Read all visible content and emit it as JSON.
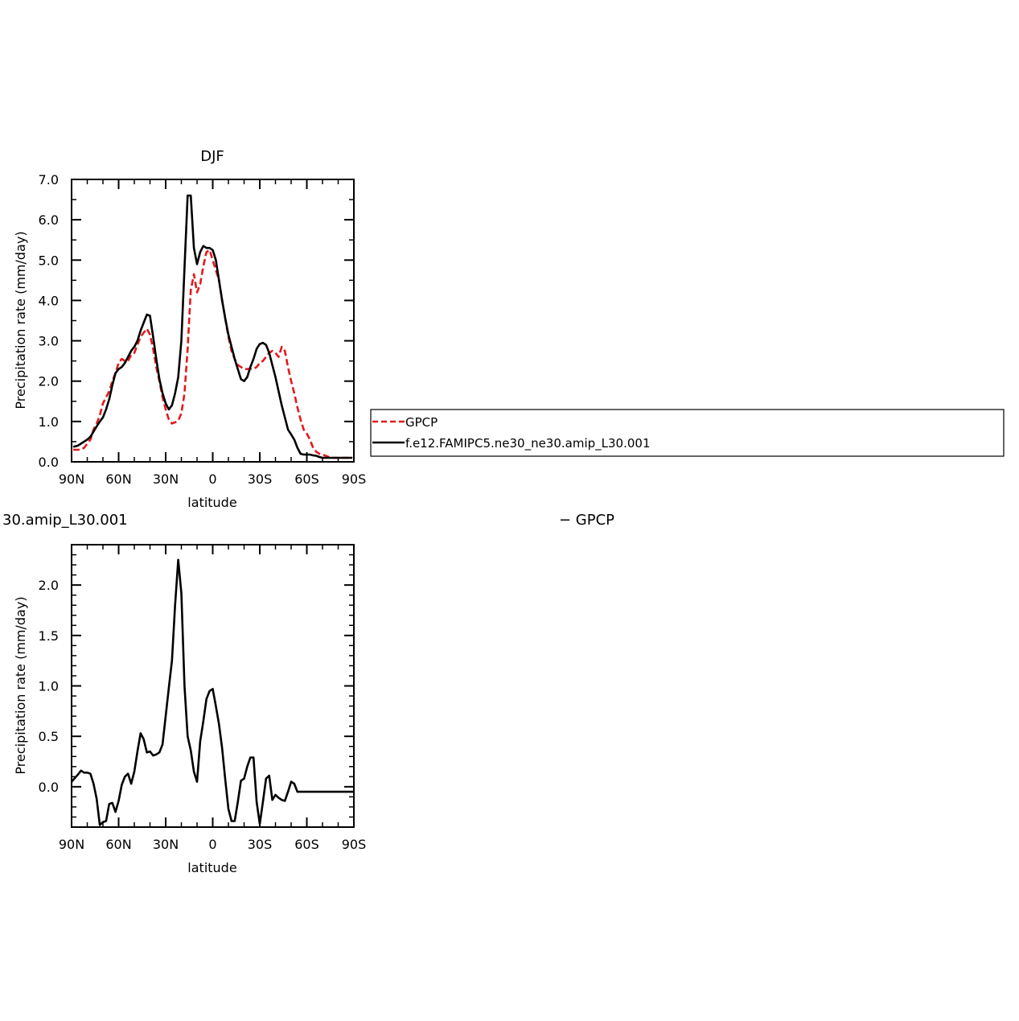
{
  "chart_data": [
    {
      "type": "line",
      "title": "DJF",
      "xlabel": "latitude",
      "ylabel": "Precipitation rate (mm/day)",
      "xlim": [
        90,
        -90
      ],
      "ylim": [
        0,
        7
      ],
      "xticks": [
        90,
        60,
        30,
        0,
        -30,
        -60,
        -90
      ],
      "xtick_labels": [
        "90N",
        "60N",
        "30N",
        "0",
        "30S",
        "60S",
        "90S"
      ],
      "yticks": [
        0,
        1,
        2,
        3,
        4,
        5,
        6,
        7
      ],
      "ytick_labels": [
        "0.0",
        "1.0",
        "2.0",
        "3.0",
        "4.0",
        "5.0",
        "6.0",
        "7.0"
      ],
      "legend_position": "right, outside plot",
      "series": [
        {
          "name": "GPCP",
          "color": "#e31a1c",
          "dash": "dashed",
          "x": [
            89,
            86,
            84,
            82,
            80,
            78,
            76,
            74,
            72,
            70,
            68,
            66,
            64,
            62,
            60,
            58,
            56,
            54,
            52,
            50,
            48,
            46,
            44,
            42,
            40,
            38,
            36,
            34,
            32,
            30,
            28,
            26,
            24,
            22,
            20,
            18,
            16,
            14,
            12,
            10,
            8,
            6,
            4,
            2,
            0,
            -2,
            -4,
            -6,
            -8,
            -10,
            -12,
            -14,
            -16,
            -18,
            -20,
            -22,
            -24,
            -26,
            -28,
            -30,
            -32,
            -34,
            -36,
            -38,
            -40,
            -42,
            -44,
            -46,
            -48,
            -50,
            -52,
            -54,
            -56,
            -58,
            -60,
            -62,
            -64,
            -66,
            -68,
            -70,
            -72,
            -74,
            -76,
            -78,
            -80,
            -82,
            -84,
            -86,
            -89
          ],
          "y": [
            0.3,
            0.3,
            0.3,
            0.35,
            0.45,
            0.55,
            0.8,
            0.95,
            1.15,
            1.45,
            1.6,
            1.75,
            2.0,
            2.2,
            2.45,
            2.55,
            2.5,
            2.5,
            2.65,
            2.7,
            2.9,
            3.1,
            3.2,
            3.3,
            3.15,
            2.8,
            2.35,
            2.0,
            1.6,
            1.3,
            1.05,
            0.95,
            0.98,
            1.02,
            1.2,
            1.7,
            2.8,
            4.25,
            4.65,
            4.2,
            4.4,
            4.85,
            5.2,
            5.25,
            5.0,
            4.75,
            4.5,
            4.0,
            3.55,
            3.1,
            2.75,
            2.55,
            2.4,
            2.35,
            2.3,
            2.3,
            2.3,
            2.3,
            2.35,
            2.45,
            2.5,
            2.6,
            2.7,
            2.75,
            2.7,
            2.6,
            2.85,
            2.75,
            2.35,
            2.0,
            1.7,
            1.35,
            1.05,
            0.8,
            0.7,
            0.55,
            0.35,
            0.25,
            0.2,
            0.18,
            0.15,
            0.12,
            0.1,
            0.1,
            0.1,
            0.1,
            0.1,
            0.1,
            0.1
          ]
        },
        {
          "name": "f.e12.FAMIPC5.ne30_ne30.amip_L30.001",
          "color": "#000000",
          "dash": "solid",
          "x": [
            89,
            86,
            84,
            82,
            80,
            78,
            76,
            74,
            72,
            70,
            68,
            66,
            64,
            62,
            60,
            58,
            56,
            54,
            52,
            50,
            48,
            46,
            44,
            42,
            40,
            38,
            36,
            34,
            32,
            30,
            28,
            26,
            24,
            22,
            20,
            18,
            16,
            14,
            12,
            10,
            8,
            6,
            4,
            2,
            0,
            -2,
            -4,
            -6,
            -8,
            -10,
            -12,
            -14,
            -16,
            -18,
            -20,
            -22,
            -24,
            -26,
            -28,
            -30,
            -32,
            -34,
            -36,
            -38,
            -40,
            -42,
            -44,
            -46,
            -48,
            -50,
            -52,
            -54,
            -56,
            -58,
            -60,
            -62,
            -64,
            -66,
            -68,
            -70,
            -72,
            -74,
            -76,
            -78,
            -80,
            -82,
            -84,
            -86,
            -89
          ],
          "y": [
            0.37,
            0.4,
            0.45,
            0.5,
            0.55,
            0.62,
            0.75,
            0.88,
            1.0,
            1.1,
            1.3,
            1.55,
            1.9,
            2.2,
            2.3,
            2.35,
            2.45,
            2.6,
            2.75,
            2.85,
            3.0,
            3.25,
            3.45,
            3.65,
            3.62,
            3.1,
            2.55,
            2.05,
            1.7,
            1.45,
            1.3,
            1.4,
            1.7,
            2.1,
            3.0,
            4.8,
            6.6,
            6.6,
            5.3,
            4.9,
            5.2,
            5.35,
            5.3,
            5.3,
            5.25,
            5.0,
            4.5,
            4.0,
            3.55,
            3.15,
            2.85,
            2.55,
            2.3,
            2.05,
            2.0,
            2.1,
            2.35,
            2.55,
            2.8,
            2.92,
            2.95,
            2.9,
            2.7,
            2.4,
            2.1,
            1.75,
            1.4,
            1.1,
            0.8,
            0.68,
            0.55,
            0.35,
            0.2,
            0.18,
            0.18,
            0.18,
            0.16,
            0.15,
            0.12,
            0.1,
            0.1,
            0.1,
            0.1,
            0.1,
            0.1,
            0.1,
            0.1,
            0.1,
            0.1
          ]
        }
      ]
    },
    {
      "type": "line",
      "title": "30.amip_L30.001",
      "title_right": "− GPCP",
      "xlabel": "latitude",
      "ylabel": "Precipitation rate (mm/day)",
      "xlim": [
        90,
        -90
      ],
      "ylim": [
        -0.4,
        2.4
      ],
      "xticks": [
        90,
        60,
        30,
        0,
        -30,
        -60,
        -90
      ],
      "xtick_labels": [
        "90N",
        "60N",
        "30N",
        "0",
        "30S",
        "60S",
        "90S"
      ],
      "yticks": [
        0,
        0.5,
        1.0,
        1.5,
        2.0
      ],
      "ytick_labels": [
        "0.0",
        "0.5",
        "1.0",
        "1.5",
        "2.0"
      ],
      "series": [
        {
          "color": "#000000",
          "dash": "solid",
          "x": [
            90,
            86,
            84,
            82,
            80,
            78,
            76,
            74,
            72,
            70,
            68,
            66,
            64,
            62,
            60,
            58,
            56,
            54,
            52,
            50,
            48,
            46,
            44,
            42,
            40,
            38,
            36,
            34,
            32,
            30,
            28,
            26,
            24,
            22,
            20,
            18,
            16,
            14,
            12,
            10,
            8,
            6,
            4,
            2,
            0,
            -2,
            -4,
            -6,
            -8,
            -10,
            -12,
            -14,
            -16,
            -18,
            -20,
            -22,
            -24,
            -26,
            -28,
            -30,
            -32,
            -34,
            -36,
            -38,
            -40,
            -42,
            -44,
            -46,
            -48,
            -50,
            -52,
            -54,
            -56,
            -58,
            -60,
            -62,
            -64,
            -66,
            -68,
            -70,
            -72,
            -74,
            -76,
            -78,
            -80,
            -82,
            -84,
            -86,
            -88,
            -90
          ],
          "y": [
            0.05,
            0.12,
            0.16,
            0.14,
            0.14,
            0.13,
            0.03,
            -0.12,
            -0.38,
            -0.35,
            -0.34,
            -0.17,
            -0.16,
            -0.25,
            -0.14,
            0.02,
            0.1,
            0.13,
            0.03,
            0.15,
            0.35,
            0.53,
            0.47,
            0.34,
            0.35,
            0.31,
            0.32,
            0.34,
            0.42,
            0.7,
            0.98,
            1.25,
            1.8,
            2.25,
            1.92,
            1.0,
            0.5,
            0.36,
            0.15,
            0.05,
            0.45,
            0.65,
            0.87,
            0.95,
            0.97,
            0.8,
            0.62,
            0.38,
            0.07,
            -0.22,
            -0.34,
            -0.34,
            -0.15,
            0.06,
            0.08,
            0.2,
            0.29,
            0.29,
            -0.15,
            -0.37,
            -0.15,
            0.08,
            0.11,
            -0.13,
            -0.08,
            -0.11,
            -0.13,
            -0.14,
            -0.05,
            0.05,
            0.03,
            -0.05,
            -0.05,
            -0.05,
            -0.05,
            -0.05,
            -0.05,
            -0.05,
            -0.05,
            -0.05,
            -0.05,
            -0.05,
            -0.05,
            -0.05,
            -0.05,
            -0.05,
            -0.05,
            -0.05,
            -0.05,
            -0.05
          ]
        }
      ]
    }
  ]
}
